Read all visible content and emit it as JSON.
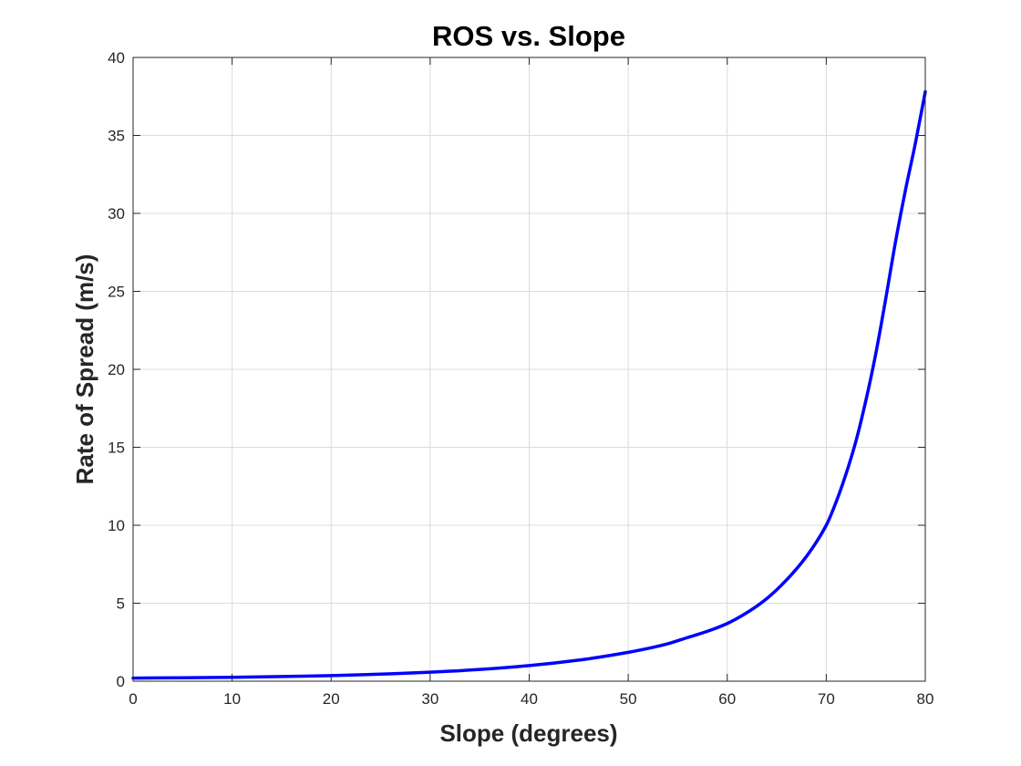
{
  "chart_data": {
    "type": "line",
    "title": "ROS vs. Slope",
    "xlabel": "Slope (degrees)",
    "ylabel": "Rate of Spread (m/s)",
    "xlim": [
      0,
      80
    ],
    "ylim": [
      0,
      40
    ],
    "xticks": [
      0,
      10,
      20,
      30,
      40,
      50,
      60,
      70,
      80
    ],
    "yticks": [
      0,
      5,
      10,
      15,
      20,
      25,
      30,
      35,
      40
    ],
    "grid": true,
    "series": [
      {
        "color": "#0000ff",
        "x": [
          0,
          5,
          10,
          15,
          20,
          25,
          30,
          35,
          40,
          45,
          50,
          52,
          54,
          56,
          58,
          60,
          62,
          64,
          66,
          68,
          70,
          71,
          72,
          73,
          74,
          75,
          76,
          77,
          78,
          79,
          80
        ],
        "y": [
          0.2,
          0.22,
          0.25,
          0.3,
          0.36,
          0.45,
          0.58,
          0.75,
          1.0,
          1.35,
          1.85,
          2.1,
          2.4,
          2.8,
          3.2,
          3.7,
          4.4,
          5.3,
          6.5,
          8.0,
          10.0,
          11.5,
          13.3,
          15.4,
          18.0,
          21.0,
          24.5,
          28.2,
          31.5,
          34.5,
          37.8
        ]
      }
    ]
  }
}
